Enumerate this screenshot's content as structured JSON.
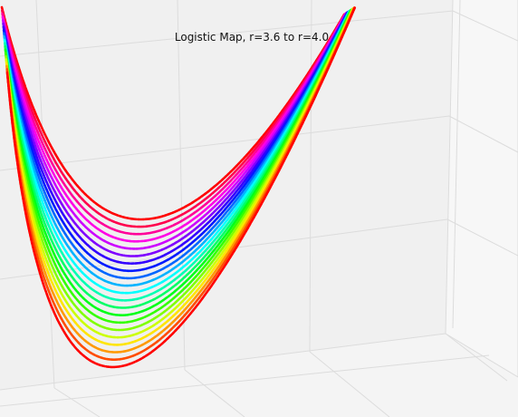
{
  "chart_data": {
    "type": "scatter",
    "subtype": "3d-scatter",
    "title": "Logistic Map, r=3.6 to r=4.0",
    "xlabel": "",
    "ylabel": "",
    "zlabel": "",
    "r_range": [
      3.6,
      4.0
    ],
    "series": [
      {
        "r": 3.6,
        "color": "#ff0000"
      },
      {
        "r": 3.62,
        "color": "#ff4c00"
      },
      {
        "r": 3.64,
        "color": "#ff9900"
      },
      {
        "r": 3.66,
        "color": "#ffe500"
      },
      {
        "r": 3.68,
        "color": "#ccff00"
      },
      {
        "r": 3.7,
        "color": "#80ff00"
      },
      {
        "r": 3.72,
        "color": "#33ff00"
      },
      {
        "r": 3.74,
        "color": "#00ff19"
      },
      {
        "r": 3.76,
        "color": "#00ff66"
      },
      {
        "r": 3.78,
        "color": "#00ffb2"
      },
      {
        "r": 3.8,
        "color": "#00ffff"
      },
      {
        "r": 3.82,
        "color": "#00b3ff"
      },
      {
        "r": 3.84,
        "color": "#0066ff"
      },
      {
        "r": 3.86,
        "color": "#001aff"
      },
      {
        "r": 3.88,
        "color": "#3300ff"
      },
      {
        "r": 3.9,
        "color": "#7f00ff"
      },
      {
        "r": 3.92,
        "color": "#cc00ff"
      },
      {
        "r": 3.94,
        "color": "#ff00e6"
      },
      {
        "r": 3.96,
        "color": "#ff0099"
      },
      {
        "r": 3.98,
        "color": "#ff004d"
      },
      {
        "r": 4.0,
        "color": "#ff0000"
      }
    ],
    "grid": true,
    "legend": "none"
  }
}
